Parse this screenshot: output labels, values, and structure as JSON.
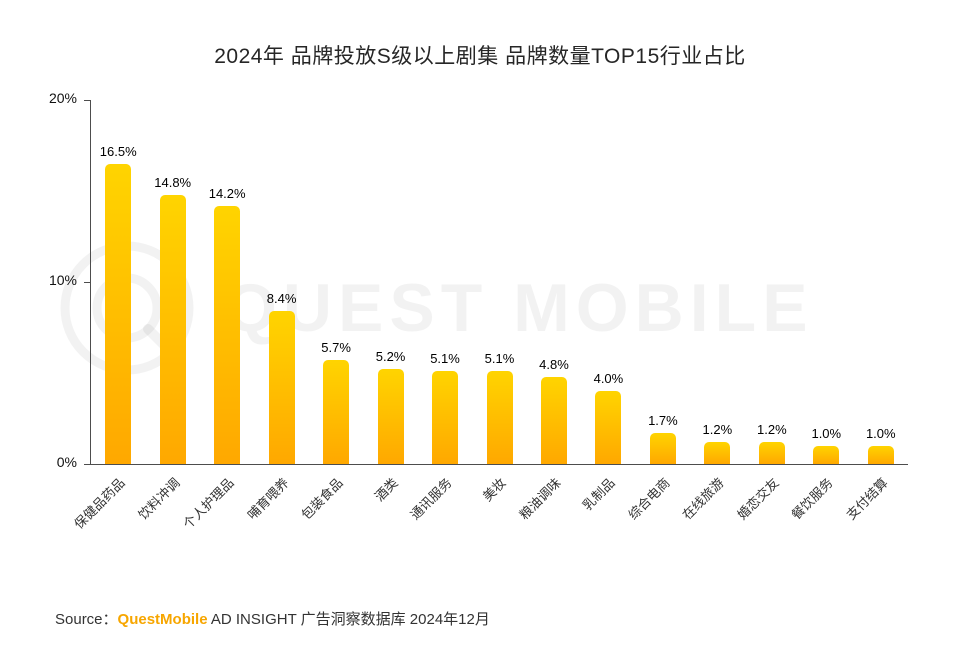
{
  "title": "2024年 品牌投放S级以上剧集 品牌数量TOP15行业占比",
  "watermark": {
    "text": "QUEST MOBILE"
  },
  "source": {
    "prefix": "Source：",
    "brand": "QuestMobile",
    "suffix": " AD INSIGHT 广告洞察数据库 2024年12月"
  },
  "colors": {
    "bar_top": "#FFD400",
    "bar_bottom": "#FFA800",
    "brand_orange": "#F7A600",
    "axis": "#4d4d4d",
    "watermark": "rgba(0,0,0,0.05)"
  },
  "chart_data": {
    "type": "bar",
    "title": "2024年 品牌投放S级以上剧集 品牌数量TOP15行业占比",
    "categories": [
      "保健品药品",
      "饮料冲调",
      "个人护理品",
      "哺育喂养",
      "包装食品",
      "酒类",
      "通讯服务",
      "美妆",
      "粮油调味",
      "乳制品",
      "综合电商",
      "在线旅游",
      "婚恋交友",
      "餐饮服务",
      "支付结算"
    ],
    "values": [
      16.5,
      14.8,
      14.2,
      8.4,
      5.7,
      5.2,
      5.1,
      5.1,
      4.8,
      4.0,
      1.7,
      1.2,
      1.2,
      1.0,
      1.0
    ],
    "value_labels": [
      "16.5%",
      "14.8%",
      "14.2%",
      "8.4%",
      "5.7%",
      "5.2%",
      "5.1%",
      "5.1%",
      "4.8%",
      "4.0%",
      "1.7%",
      "1.2%",
      "1.2%",
      "1.0%",
      "1.0%"
    ],
    "xlabel": "",
    "ylabel": "",
    "ylim": [
      0,
      20
    ],
    "yticks": [
      {
        "value": 0,
        "label": "0%"
      },
      {
        "value": 10,
        "label": "10%"
      },
      {
        "value": 20,
        "label": "20%"
      }
    ],
    "grid": false,
    "legend": "none"
  }
}
